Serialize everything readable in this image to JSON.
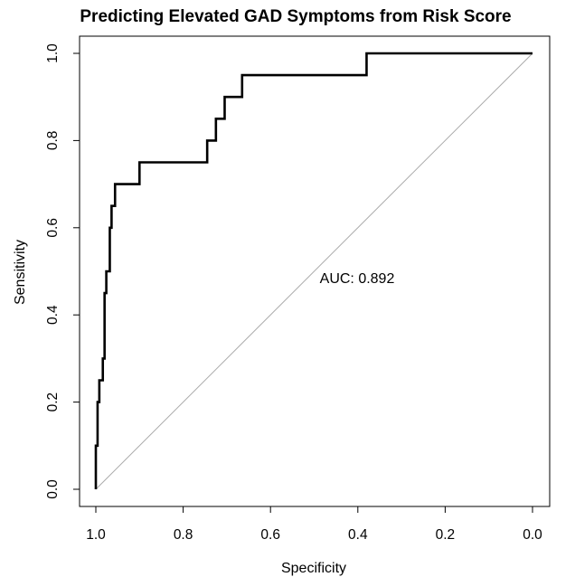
{
  "chart_data": {
    "type": "line",
    "title": "Predicting Elevated GAD Symptoms from Risk Score",
    "xlabel": "Specificity",
    "ylabel": "Sensitivity",
    "xlim": [
      1.0,
      0.0
    ],
    "ylim": [
      0.0,
      1.0
    ],
    "x_reversed": true,
    "x_ticks": [
      "1.0",
      "0.8",
      "0.6",
      "0.4",
      "0.2",
      "0.0"
    ],
    "y_ticks": [
      "0.0",
      "0.2",
      "0.4",
      "0.6",
      "0.8",
      "1.0"
    ],
    "grid": false,
    "legend": "none",
    "annotation": "AUC: 0.892",
    "reference_line": {
      "from": [
        1.0,
        0.0
      ],
      "to": [
        0.0,
        1.0
      ],
      "color": "#aaaaaa"
    },
    "series": [
      {
        "color": "#000000",
        "points": [
          [
            1.0,
            0.0
          ],
          [
            1.0,
            0.1
          ],
          [
            0.996,
            0.1
          ],
          [
            0.996,
            0.2
          ],
          [
            0.992,
            0.2
          ],
          [
            0.992,
            0.25
          ],
          [
            0.984,
            0.25
          ],
          [
            0.984,
            0.3
          ],
          [
            0.98,
            0.3
          ],
          [
            0.98,
            0.45
          ],
          [
            0.976,
            0.45
          ],
          [
            0.976,
            0.5
          ],
          [
            0.968,
            0.5
          ],
          [
            0.968,
            0.6
          ],
          [
            0.964,
            0.6
          ],
          [
            0.964,
            0.65
          ],
          [
            0.956,
            0.65
          ],
          [
            0.956,
            0.7
          ],
          [
            0.9,
            0.7
          ],
          [
            0.9,
            0.75
          ],
          [
            0.745,
            0.75
          ],
          [
            0.745,
            0.8
          ],
          [
            0.725,
            0.8
          ],
          [
            0.725,
            0.85
          ],
          [
            0.705,
            0.85
          ],
          [
            0.705,
            0.9
          ],
          [
            0.665,
            0.9
          ],
          [
            0.665,
            0.95
          ],
          [
            0.38,
            0.95
          ],
          [
            0.38,
            1.0
          ],
          [
            0.0,
            1.0
          ]
        ]
      }
    ]
  }
}
